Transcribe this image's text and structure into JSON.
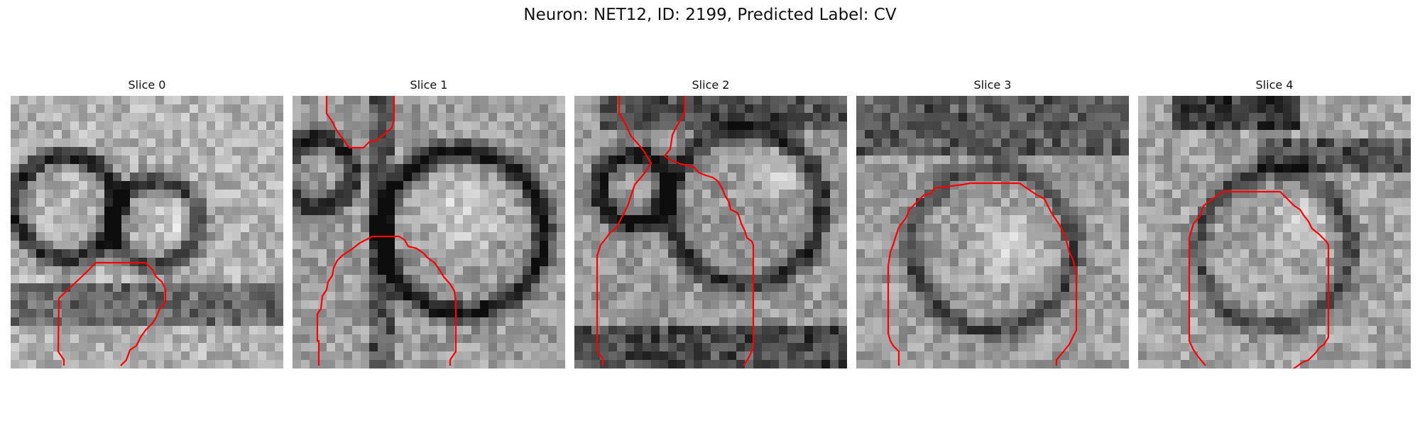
{
  "figure": {
    "suptitle": "Neuron: NET12, ID: 2199, Predicted Label: CV",
    "contour_color": "#ff0000"
  },
  "panels": [
    {
      "title": "Slice 0",
      "contours": [
        [
          [
            68,
            285
          ],
          [
            67,
            360
          ],
          [
            75,
            372
          ],
          [
            75,
            380
          ]
        ],
        [
          [
            68,
            285
          ],
          [
            103,
            252
          ],
          [
            120,
            235
          ],
          [
            190,
            235
          ],
          [
            200,
            245
          ],
          [
            205,
            255
          ],
          [
            213,
            262
          ],
          [
            218,
            272
          ],
          [
            218,
            290
          ],
          [
            210,
            300
          ],
          [
            205,
            312
          ],
          [
            200,
            320
          ],
          [
            190,
            330
          ],
          [
            183,
            340
          ],
          [
            177,
            352
          ],
          [
            168,
            358
          ],
          [
            163,
            372
          ],
          [
            155,
            380
          ]
        ]
      ]
    },
    {
      "title": "Slice 1",
      "contours": [
        [
          [
            48,
            0
          ],
          [
            48,
            25
          ],
          [
            55,
            35
          ],
          [
            63,
            50
          ],
          [
            72,
            62
          ],
          [
            80,
            73
          ],
          [
            100,
            73
          ],
          [
            108,
            65
          ],
          [
            120,
            62
          ],
          [
            130,
            53
          ],
          [
            140,
            45
          ],
          [
            143,
            32
          ],
          [
            143,
            0
          ]
        ],
        [
          [
            37,
            380
          ],
          [
            37,
            345
          ],
          [
            35,
            345
          ],
          [
            35,
            307
          ],
          [
            40,
            300
          ],
          [
            42,
            282
          ],
          [
            48,
            273
          ],
          [
            50,
            262
          ],
          [
            56,
            253
          ],
          [
            58,
            242
          ],
          [
            63,
            232
          ],
          [
            70,
            225
          ],
          [
            85,
            215
          ],
          [
            95,
            207
          ],
          [
            105,
            202
          ],
          [
            112,
            198
          ],
          [
            150,
            198
          ],
          [
            158,
            203
          ],
          [
            163,
            212
          ],
          [
            175,
            215
          ],
          [
            185,
            222
          ],
          [
            190,
            228
          ],
          [
            200,
            235
          ],
          [
            207,
            245
          ],
          [
            213,
            255
          ],
          [
            222,
            265
          ],
          [
            228,
            275
          ],
          [
            230,
            290
          ],
          [
            230,
            360
          ],
          [
            222,
            372
          ],
          [
            222,
            380
          ]
        ]
      ]
    },
    {
      "title": "Slice 2",
      "contours": [
        [
          [
            63,
            0
          ],
          [
            63,
            25
          ],
          [
            72,
            40
          ],
          [
            80,
            57
          ],
          [
            90,
            68
          ],
          [
            98,
            78
          ],
          [
            105,
            90
          ],
          [
            108,
            95
          ],
          [
            98,
            110
          ],
          [
            85,
            125
          ],
          [
            80,
            140
          ],
          [
            75,
            155
          ],
          [
            70,
            165
          ],
          [
            62,
            180
          ],
          [
            57,
            188
          ],
          [
            50,
            193
          ],
          [
            45,
            200
          ],
          [
            37,
            210
          ],
          [
            32,
            225
          ],
          [
            32,
            360
          ],
          [
            40,
            370
          ],
          [
            40,
            380
          ]
        ],
        [
          [
            155,
            0
          ],
          [
            155,
            25
          ],
          [
            143,
            45
          ],
          [
            138,
            55
          ],
          [
            135,
            75
          ],
          [
            127,
            85
          ],
          [
            135,
            90
          ],
          [
            150,
            96
          ],
          [
            160,
            98
          ],
          [
            168,
            100
          ],
          [
            175,
            108
          ],
          [
            185,
            112
          ],
          [
            195,
            115
          ],
          [
            202,
            120
          ],
          [
            208,
            130
          ],
          [
            212,
            140
          ],
          [
            218,
            150
          ],
          [
            220,
            160
          ],
          [
            230,
            165
          ],
          [
            232,
            170
          ],
          [
            235,
            180
          ],
          [
            240,
            190
          ],
          [
            243,
            200
          ],
          [
            250,
            205
          ],
          [
            252,
            210
          ],
          [
            252,
            355
          ],
          [
            245,
            370
          ],
          [
            238,
            380
          ]
        ]
      ]
    },
    {
      "title": "Slice 3",
      "contours": [
        [
          [
            60,
            380
          ],
          [
            60,
            360
          ],
          [
            52,
            352
          ],
          [
            48,
            345
          ],
          [
            45,
            335
          ],
          [
            45,
            240
          ],
          [
            48,
            220
          ],
          [
            52,
            210
          ],
          [
            55,
            200
          ],
          [
            60,
            185
          ],
          [
            70,
            172
          ],
          [
            75,
            160
          ],
          [
            85,
            150
          ],
          [
            90,
            145
          ],
          [
            95,
            140
          ],
          [
            105,
            138
          ],
          [
            110,
            130
          ],
          [
            150,
            125
          ],
          [
            160,
            123
          ],
          [
            230,
            123
          ],
          [
            240,
            130
          ],
          [
            255,
            140
          ],
          [
            265,
            145
          ],
          [
            275,
            165
          ],
          [
            285,
            180
          ],
          [
            288,
            185
          ],
          [
            295,
            200
          ],
          [
            300,
            220
          ],
          [
            305,
            230
          ],
          [
            310,
            250
          ],
          [
            310,
            330
          ],
          [
            305,
            340
          ],
          [
            300,
            350
          ],
          [
            292,
            360
          ],
          [
            282,
            372
          ],
          [
            282,
            380
          ]
        ]
      ]
    },
    {
      "title": "Slice 4",
      "contours": [
        [
          [
            95,
            380
          ],
          [
            85,
            368
          ],
          [
            78,
            358
          ],
          [
            72,
            345
          ],
          [
            72,
            200
          ],
          [
            78,
            180
          ],
          [
            88,
            168
          ],
          [
            92,
            155
          ],
          [
            105,
            145
          ],
          [
            112,
            140
          ],
          [
            120,
            135
          ],
          [
            200,
            135
          ],
          [
            210,
            145
          ],
          [
            220,
            155
          ],
          [
            228,
            160
          ],
          [
            233,
            168
          ],
          [
            240,
            177
          ],
          [
            245,
            187
          ],
          [
            255,
            195
          ],
          [
            265,
            205
          ],
          [
            268,
            210
          ],
          [
            268,
            340
          ],
          [
            262,
            350
          ],
          [
            255,
            355
          ],
          [
            250,
            362
          ],
          [
            240,
            372
          ],
          [
            232,
            375
          ],
          [
            225,
            380
          ],
          [
            218,
            385
          ]
        ]
      ]
    }
  ]
}
